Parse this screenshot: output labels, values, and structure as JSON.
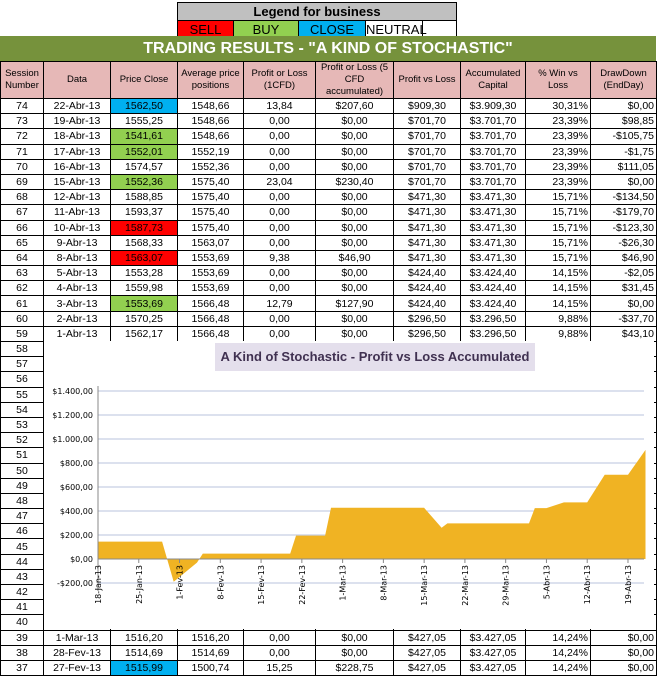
{
  "legend": {
    "title": "Legend for business",
    "items": [
      {
        "label": "SELL",
        "color": "#ff0000"
      },
      {
        "label": "BUY",
        "color": "#92d050"
      },
      {
        "label": "CLOSE",
        "color": "#00b0f0"
      },
      {
        "label": "NEUTRAL",
        "color": "#ffffff"
      }
    ]
  },
  "title": "TRADING RESULTS - \"A KIND OF STOCHASTIC\"",
  "columns": [
    "Session Number",
    "Data",
    "Price Close",
    "Average price positions",
    "Profit or Loss (1CFD)",
    "Profit or Loss (5 CFD accumulated)",
    "Profit vs Loss",
    "Accumulated Capital",
    "% Win vs Loss",
    "DrawDown (EndDay)"
  ],
  "rows": [
    [
      "74",
      "22-Abr-13",
      "1562,50",
      "1548,66",
      "13,84",
      "$207,60",
      "$909,30",
      "$3.909,30",
      "30,31%",
      "$0,00",
      "close"
    ],
    [
      "73",
      "19-Abr-13",
      "1555,25",
      "1548,66",
      "0,00",
      "$0,00",
      "$701,70",
      "$3.701,70",
      "23,39%",
      "$98,85",
      ""
    ],
    [
      "72",
      "18-Abr-13",
      "1541,61",
      "1548,66",
      "0,00",
      "$0,00",
      "$701,70",
      "$3.701,70",
      "23,39%",
      "-$105,75",
      "buy"
    ],
    [
      "71",
      "17-Abr-13",
      "1552,01",
      "1552,19",
      "0,00",
      "$0,00",
      "$701,70",
      "$3.701,70",
      "23,39%",
      "-$1,75",
      "buy"
    ],
    [
      "70",
      "16-Abr-13",
      "1574,57",
      "1552,36",
      "0,00",
      "$0,00",
      "$701,70",
      "$3.701,70",
      "23,39%",
      "$111,05",
      ""
    ],
    [
      "69",
      "15-Abr-13",
      "1552,36",
      "1575,40",
      "23,04",
      "$230,40",
      "$701,70",
      "$3.701,70",
      "23,39%",
      "$0,00",
      "buy"
    ],
    [
      "68",
      "12-Abr-13",
      "1588,85",
      "1575,40",
      "0,00",
      "$0,00",
      "$471,30",
      "$3.471,30",
      "15,71%",
      "-$134,50",
      ""
    ],
    [
      "67",
      "11-Abr-13",
      "1593,37",
      "1575,40",
      "0,00",
      "$0,00",
      "$471,30",
      "$3.471,30",
      "15,71%",
      "-$179,70",
      ""
    ],
    [
      "66",
      "10-Abr-13",
      "1587,73",
      "1575,40",
      "0,00",
      "$0,00",
      "$471,30",
      "$3.471,30",
      "15,71%",
      "-$123,30",
      "sell"
    ],
    [
      "65",
      "9-Abr-13",
      "1568,33",
      "1563,07",
      "0,00",
      "$0,00",
      "$471,30",
      "$3.471,30",
      "15,71%",
      "-$26,30",
      ""
    ],
    [
      "64",
      "8-Abr-13",
      "1563,07",
      "1553,69",
      "9,38",
      "$46,90",
      "$471,30",
      "$3.471,30",
      "15,71%",
      "$46,90",
      "sell"
    ],
    [
      "63",
      "5-Abr-13",
      "1553,28",
      "1553,69",
      "0,00",
      "$0,00",
      "$424,40",
      "$3.424,40",
      "14,15%",
      "-$2,05",
      ""
    ],
    [
      "62",
      "4-Abr-13",
      "1559,98",
      "1553,69",
      "0,00",
      "$0,00",
      "$424,40",
      "$3.424,40",
      "14,15%",
      "$31,45",
      ""
    ],
    [
      "61",
      "3-Abr-13",
      "1553,69",
      "1566,48",
      "12,79",
      "$127,90",
      "$424,40",
      "$3.424,40",
      "14,15%",
      "$0,00",
      "buy"
    ],
    [
      "60",
      "2-Abr-13",
      "1570,25",
      "1566,48",
      "0,00",
      "$0,00",
      "$296,50",
      "$3.296,50",
      "9,88%",
      "-$37,70",
      ""
    ],
    [
      "59",
      "1-Abr-13",
      "1562,17",
      "1566,48",
      "0,00",
      "$0,00",
      "$296,50",
      "$3.296,50",
      "9,88%",
      "$43,10",
      ""
    ],
    [
      "58"
    ],
    [
      "57"
    ],
    [
      "56"
    ],
    [
      "55"
    ],
    [
      "54"
    ],
    [
      "53"
    ],
    [
      "52"
    ],
    [
      "51"
    ],
    [
      "50"
    ],
    [
      "49"
    ],
    [
      "48"
    ],
    [
      "47"
    ],
    [
      "46"
    ],
    [
      "45"
    ],
    [
      "44"
    ],
    [
      "43"
    ],
    [
      "42"
    ],
    [
      "41"
    ],
    [
      "40"
    ],
    [
      "39",
      "1-Mar-13",
      "1516,20",
      "1516,20",
      "0,00",
      "$0,00",
      "$427,05",
      "$3.427,05",
      "14,24%",
      "$0,00",
      ""
    ],
    [
      "38",
      "28-Fev-13",
      "1514,69",
      "1514,69",
      "0,00",
      "$0,00",
      "$427,05",
      "$3.427,05",
      "14,24%",
      "$0,00",
      ""
    ],
    [
      "37",
      "27-Fev-13",
      "1515,99",
      "1500,74",
      "15,25",
      "$228,75",
      "$427,05",
      "$3.427,05",
      "14,24%",
      "$0,00",
      "close"
    ]
  ],
  "chart_data": {
    "type": "area",
    "title": "A Kind of Stochastic - Profit vs Loss Accumulated",
    "color": "#f0b323",
    "ylim": [
      -200,
      1400
    ],
    "yticks": [
      "-$200,00",
      "$0,00",
      "$200,00",
      "$400,00",
      "$600,00",
      "$800,00",
      "$1.000,00",
      "$1.200,00",
      "$1.400,00"
    ],
    "ytick_values": [
      -200,
      0,
      200,
      400,
      600,
      800,
      1000,
      1200,
      1400
    ],
    "xticks": [
      "18-Jan-13",
      "25-Jan-13",
      "1-Fev-13",
      "8-Fev-13",
      "15-Fev-13",
      "22-Fev-13",
      "1-Mar-13",
      "8-Mar-13",
      "15-Mar-13",
      "22-Mar-13",
      "29-Mar-13",
      "5-Abr-13",
      "12-Abr-13",
      "19-Abr-13"
    ],
    "xtick_dates": [
      "2013-01-18",
      "2013-01-25",
      "2013-02-01",
      "2013-02-08",
      "2013-02-15",
      "2013-02-22",
      "2013-03-01",
      "2013-03-08",
      "2013-03-15",
      "2013-03-22",
      "2013-03-29",
      "2013-04-05",
      "2013-04-12",
      "2013-04-19"
    ],
    "grid": true,
    "points": [
      [
        "2013-01-18",
        145
      ],
      [
        "2013-01-29",
        145
      ],
      [
        "2013-01-31",
        -190
      ],
      [
        "2013-02-04",
        -30
      ],
      [
        "2013-02-05",
        45
      ],
      [
        "2013-02-20",
        45
      ],
      [
        "2013-02-21",
        195
      ],
      [
        "2013-02-26",
        195
      ],
      [
        "2013-02-27",
        427.05
      ],
      [
        "2013-03-15",
        427.05
      ],
      [
        "2013-03-18",
        260
      ],
      [
        "2013-03-19",
        296.5
      ],
      [
        "2013-04-02",
        296.5
      ],
      [
        "2013-04-03",
        424.4
      ],
      [
        "2013-04-05",
        424.4
      ],
      [
        "2013-04-08",
        471.3
      ],
      [
        "2013-04-12",
        471.3
      ],
      [
        "2013-04-15",
        701.7
      ],
      [
        "2013-04-19",
        701.7
      ],
      [
        "2013-04-22",
        909.3
      ]
    ]
  }
}
